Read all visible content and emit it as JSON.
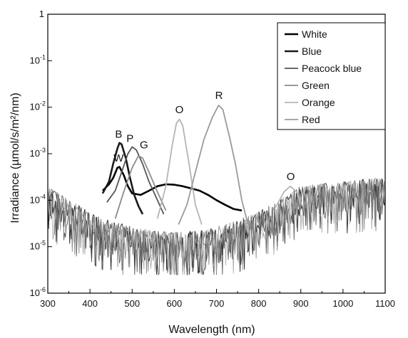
{
  "chart_data": {
    "type": "line",
    "title": "",
    "xlabel": "Wavelength (nm)",
    "ylabel": "Irradiance (µmol/s/m²/nm)",
    "x_range": [
      300,
      1100
    ],
    "y_range": [
      1e-06,
      1
    ],
    "y_scale": "log",
    "grid": false,
    "legend_position": "top-right",
    "x_ticks": [
      "300",
      "400",
      "500",
      "600",
      "700",
      "800",
      "900",
      "1000",
      "1100"
    ],
    "y_ticks": [
      {
        "base": "10",
        "exp": "-6",
        "value": 1e-06
      },
      {
        "base": "10",
        "exp": "-5",
        "value": 1e-05
      },
      {
        "base": "10",
        "exp": "-4",
        "value": 0.0001
      },
      {
        "base": "10",
        "exp": "-3",
        "value": 0.001
      },
      {
        "base": "10",
        "exp": "-2",
        "value": 0.01
      },
      {
        "base": "10",
        "exp": "-1",
        "value": 0.1
      },
      {
        "base": "1",
        "exp": "",
        "value": 1
      }
    ],
    "series": [
      {
        "name": "White",
        "color": "#000000",
        "points": [
          [
            430,
            0.00016
          ],
          [
            445,
            0.00022
          ],
          [
            455,
            0.0003
          ],
          [
            465,
            0.0005
          ],
          [
            470,
            0.00052
          ],
          [
            480,
            0.00035
          ],
          [
            490,
            0.0002
          ],
          [
            500,
            0.00014
          ],
          [
            520,
            0.00013
          ],
          [
            540,
            0.00016
          ],
          [
            560,
            0.0002
          ],
          [
            580,
            0.00022
          ],
          [
            600,
            0.000215
          ],
          [
            620,
            0.0002
          ],
          [
            640,
            0.00018
          ],
          [
            660,
            0.00016
          ],
          [
            680,
            0.00013
          ],
          [
            700,
            0.0001
          ],
          [
            720,
            8e-05
          ],
          [
            740,
            6.5e-05
          ],
          [
            760,
            6e-05
          ]
        ]
      },
      {
        "name": "Blue",
        "color": "#1a1a1a",
        "points": [
          [
            430,
            0.00014
          ],
          [
            445,
            0.00025
          ],
          [
            455,
            0.0006
          ],
          [
            465,
            0.0013
          ],
          [
            470,
            0.0017
          ],
          [
            475,
            0.0016
          ],
          [
            485,
            0.0008
          ],
          [
            495,
            0.0003
          ],
          [
            505,
            0.00013
          ],
          [
            515,
            7.5e-05
          ],
          [
            525,
            5e-05
          ]
        ]
      },
      {
        "name": "Peacock blue",
        "color": "#555555",
        "points": [
          [
            440,
            9e-05
          ],
          [
            460,
            0.00016
          ],
          [
            475,
            0.0004
          ],
          [
            490,
            0.001
          ],
          [
            500,
            0.0014
          ],
          [
            510,
            0.0012
          ],
          [
            525,
            0.0006
          ],
          [
            540,
            0.00025
          ],
          [
            560,
            0.0001
          ],
          [
            575,
            5e-05
          ]
        ]
      },
      {
        "name": "Green",
        "color": "#8c8c8c",
        "points": [
          [
            460,
            4e-05
          ],
          [
            480,
            0.00015
          ],
          [
            500,
            0.0005
          ],
          [
            515,
            0.0009
          ],
          [
            525,
            0.0008
          ],
          [
            540,
            0.0004
          ],
          [
            560,
            0.00015
          ],
          [
            580,
            6e-05
          ]
        ]
      },
      {
        "name": "Orange",
        "color": "#b4b4b4",
        "points": [
          [
            560,
            4e-05
          ],
          [
            580,
            0.0002
          ],
          [
            595,
            0.0015
          ],
          [
            605,
            0.0045
          ],
          [
            612,
            0.0055
          ],
          [
            620,
            0.004
          ],
          [
            635,
            0.0006
          ],
          [
            650,
            8e-05
          ],
          [
            665,
            3e-05
          ],
          [
            840,
            7e-05
          ],
          [
            860,
            0.00015
          ],
          [
            875,
            0.0002
          ],
          [
            890,
            0.00015
          ],
          [
            905,
            7e-05
          ]
        ]
      },
      {
        "name": "Red",
        "color": "#9a9a9a",
        "points": [
          [
            610,
            3e-05
          ],
          [
            630,
            8e-05
          ],
          [
            650,
            0.0004
          ],
          [
            670,
            0.002
          ],
          [
            690,
            0.006
          ],
          [
            705,
            0.011
          ],
          [
            715,
            0.009
          ],
          [
            730,
            0.0025
          ],
          [
            745,
            0.0006
          ],
          [
            760,
            0.0001
          ],
          [
            775,
            3e-05
          ]
        ]
      }
    ],
    "annotations": [
      {
        "text": "B",
        "x": 468,
        "y": 0.0022
      },
      {
        "text": "W",
        "x": 468,
        "y": 0.00068
      },
      {
        "text": "P",
        "x": 495,
        "y": 0.0018
      },
      {
        "text": "G",
        "x": 528,
        "y": 0.0013
      },
      {
        "text": "O",
        "x": 612,
        "y": 0.0075
      },
      {
        "text": "R",
        "x": 706,
        "y": 0.015
      },
      {
        "text": "O",
        "x": 876,
        "y": 0.00027
      }
    ]
  }
}
